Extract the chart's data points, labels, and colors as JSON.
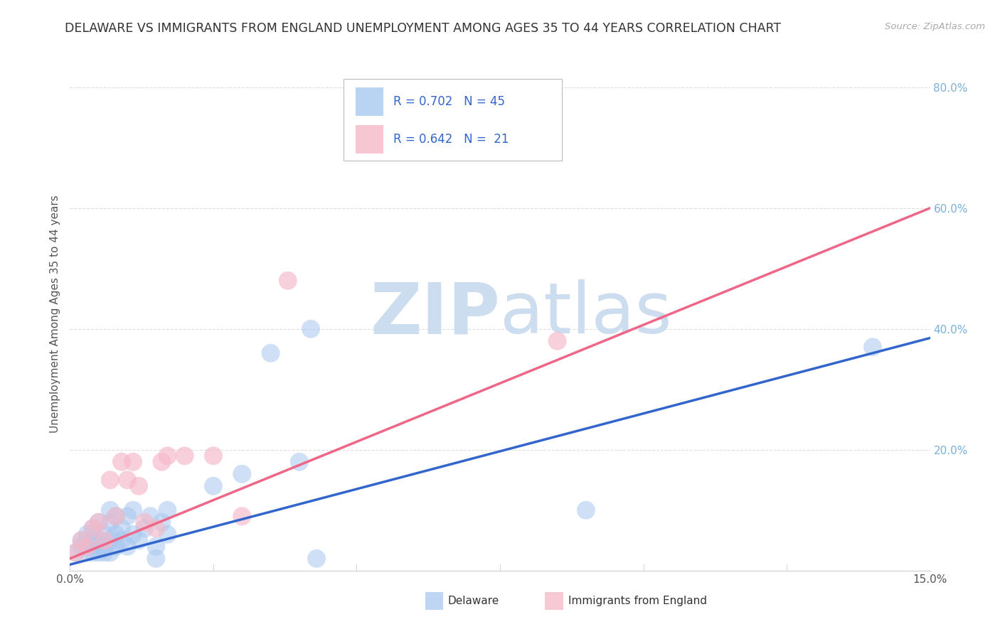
{
  "title": "DELAWARE VS IMMIGRANTS FROM ENGLAND UNEMPLOYMENT AMONG AGES 35 TO 44 YEARS CORRELATION CHART",
  "source": "Source: ZipAtlas.com",
  "ylabel": "Unemployment Among Ages 35 to 44 years",
  "xlim": [
    0.0,
    0.15
  ],
  "ylim": [
    0.0,
    0.85
  ],
  "xticks": [
    0.0,
    0.025,
    0.05,
    0.075,
    0.1,
    0.125,
    0.15
  ],
  "yticks": [
    0.0,
    0.2,
    0.4,
    0.6,
    0.8
  ],
  "background_color": "#ffffff",
  "grid_color": "#dddddd",
  "title_color": "#333333",
  "title_fontsize": 12.5,
  "tick_label_color_right": "#7ab0d8",
  "watermark_zip": "ZIP",
  "watermark_atlas": "atlas",
  "watermark_color": "#ccddf0",
  "legend_R_blue": "0.702",
  "legend_N_blue": "45",
  "legend_R_pink": "0.642",
  "legend_N_pink": "21",
  "blue_color": "#a8c8f0",
  "pink_color": "#f5b8c8",
  "blue_line_color": "#3366cc",
  "pink_line_color": "#ee6688",
  "delaware_x": [
    0.001,
    0.002,
    0.002,
    0.003,
    0.003,
    0.003,
    0.004,
    0.004,
    0.004,
    0.005,
    0.005,
    0.005,
    0.005,
    0.006,
    0.006,
    0.006,
    0.007,
    0.007,
    0.007,
    0.007,
    0.008,
    0.008,
    0.008,
    0.009,
    0.009,
    0.01,
    0.01,
    0.011,
    0.011,
    0.012,
    0.013,
    0.014,
    0.015,
    0.015,
    0.016,
    0.017,
    0.017,
    0.025,
    0.03,
    0.035,
    0.04,
    0.042,
    0.043,
    0.09,
    0.14
  ],
  "delaware_y": [
    0.03,
    0.04,
    0.05,
    0.03,
    0.04,
    0.06,
    0.03,
    0.05,
    0.07,
    0.03,
    0.04,
    0.05,
    0.08,
    0.03,
    0.04,
    0.06,
    0.03,
    0.05,
    0.08,
    0.1,
    0.04,
    0.06,
    0.09,
    0.05,
    0.07,
    0.04,
    0.09,
    0.06,
    0.1,
    0.05,
    0.07,
    0.09,
    0.04,
    0.02,
    0.08,
    0.06,
    0.1,
    0.14,
    0.16,
    0.36,
    0.18,
    0.4,
    0.02,
    0.1,
    0.37
  ],
  "england_x": [
    0.001,
    0.002,
    0.003,
    0.004,
    0.005,
    0.006,
    0.007,
    0.008,
    0.009,
    0.01,
    0.011,
    0.012,
    0.013,
    0.015,
    0.016,
    0.017,
    0.02,
    0.025,
    0.03,
    0.038,
    0.085
  ],
  "england_y": [
    0.03,
    0.05,
    0.04,
    0.07,
    0.08,
    0.05,
    0.15,
    0.09,
    0.18,
    0.15,
    0.18,
    0.14,
    0.08,
    0.07,
    0.18,
    0.19,
    0.19,
    0.19,
    0.09,
    0.48,
    0.38
  ],
  "blue_trend_x": [
    0.0,
    0.15
  ],
  "blue_trend_y": [
    0.01,
    0.385
  ],
  "pink_trend_x": [
    0.0,
    0.15
  ],
  "pink_trend_y": [
    0.02,
    0.6
  ]
}
